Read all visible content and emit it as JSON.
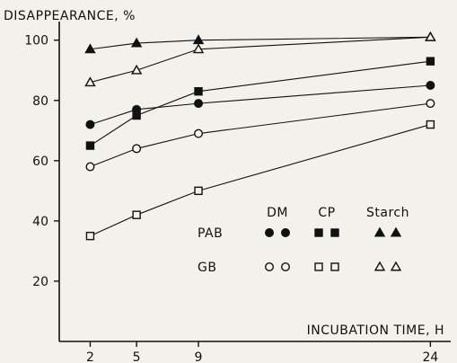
{
  "chart_data": {
    "type": "line",
    "ylabel": "DISAPPEARANCE, %",
    "xlabel": "INCUBATION TIME, H",
    "x_ticks": [
      2,
      5,
      9,
      24
    ],
    "y_ticks": [
      20,
      40,
      60,
      80,
      100
    ],
    "xlim": [
      0,
      24.5
    ],
    "ylim": [
      0,
      102
    ],
    "series": [
      {
        "name": "PAB Starch",
        "marker": "triangle",
        "fill": "filled",
        "x": [
          2,
          5,
          9,
          24
        ],
        "values": [
          97,
          99,
          100,
          101
        ]
      },
      {
        "name": "GB Starch",
        "marker": "triangle",
        "fill": "open",
        "x": [
          2,
          5,
          9,
          24
        ],
        "values": [
          86,
          90,
          97,
          101
        ]
      },
      {
        "name": "PAB CP",
        "marker": "square",
        "fill": "filled",
        "x": [
          2,
          5,
          9,
          24
        ],
        "values": [
          65,
          75,
          83,
          93
        ]
      },
      {
        "name": "PAB DM",
        "marker": "circle",
        "fill": "filled",
        "x": [
          2,
          5,
          9,
          24
        ],
        "values": [
          72,
          77,
          79,
          85
        ]
      },
      {
        "name": "GB DM",
        "marker": "circle",
        "fill": "open",
        "x": [
          2,
          5,
          9,
          24
        ],
        "values": [
          58,
          64,
          69,
          79
        ]
      },
      {
        "name": "GB CP",
        "marker": "square",
        "fill": "open",
        "x": [
          2,
          5,
          9,
          24
        ],
        "values": [
          35,
          42,
          50,
          72
        ]
      }
    ],
    "legend": {
      "placement": "center-right",
      "columns": [
        "DM",
        "CP",
        "Starch"
      ],
      "rows": [
        {
          "label": "PAB",
          "fill": "filled"
        },
        {
          "label": "GB",
          "fill": "open"
        }
      ],
      "markers": [
        "circle",
        "square",
        "triangle"
      ]
    },
    "colors": {
      "ink": "#111111",
      "background": "#f3f1ec"
    },
    "grid": false
  }
}
